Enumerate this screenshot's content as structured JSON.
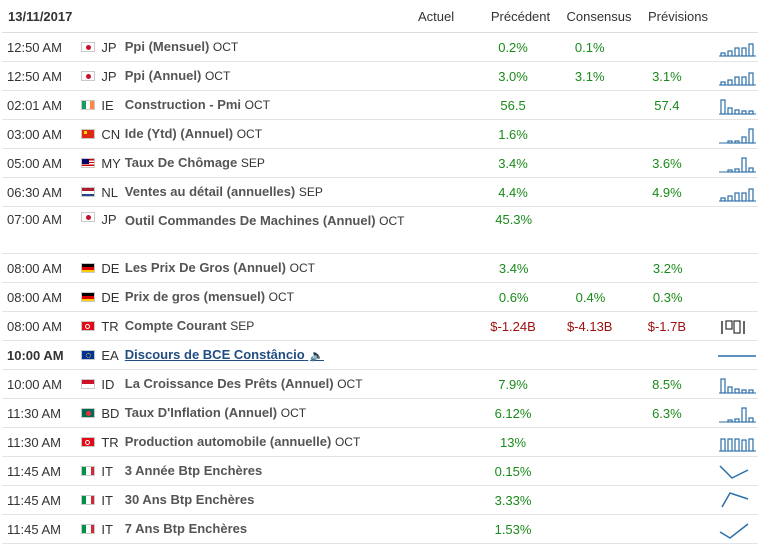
{
  "header": {
    "date": "13/11/2017",
    "actual": "Actuel",
    "previous": "Précédent",
    "consensus": "Consensus",
    "forecast": "Prévisions"
  },
  "rows": [
    {
      "time": "12:50 AM",
      "cc": "JP",
      "event": "Ppi (Mensuel)",
      "period": "OCT",
      "prev": "0.2%",
      "cons": "0.1%",
      "fore": "",
      "flag": "jp",
      "spark": "bars-up"
    },
    {
      "time": "12:50 AM",
      "cc": "JP",
      "event": "Ppi (Annuel)",
      "period": "OCT",
      "prev": "3.0%",
      "cons": "3.1%",
      "fore": "3.1%",
      "flag": "jp",
      "spark": "bars-up"
    },
    {
      "time": "02:01 AM",
      "cc": "IE",
      "event": "Construction - Pmi",
      "period": "OCT",
      "prev": "56.5",
      "cons": "",
      "fore": "57.4",
      "flag": "ie",
      "spark": "bars-mixed"
    },
    {
      "time": "03:00 AM",
      "cc": "CN",
      "event": "Ide (Ytd) (Annuel)",
      "period": "OCT",
      "prev": "1.6%",
      "cons": "",
      "fore": "",
      "flag": "cn",
      "spark": "bars-rise"
    },
    {
      "time": "05:00 AM",
      "cc": "MY",
      "event": "Taux De Chômage",
      "period": "SEP",
      "prev": "3.4%",
      "cons": "",
      "fore": "3.6%",
      "flag": "my",
      "spark": "bars-peak"
    },
    {
      "time": "06:30 AM",
      "cc": "NL",
      "event": "Ventes au détail (annuelles)",
      "period": "SEP",
      "prev": "4.4%",
      "cons": "",
      "fore": "4.9%",
      "flag": "nl",
      "spark": "bars-up"
    },
    {
      "time": "07:00 AM",
      "cc": "JP",
      "event": "Outil Commandes De Machines (Annuel)",
      "period": "OCT",
      "prev": "45.3%",
      "cons": "",
      "fore": "",
      "flag": "jp",
      "spark": "",
      "tall": true
    },
    {
      "time": "08:00 AM",
      "cc": "DE",
      "event": "Les Prix De Gros (Annuel)",
      "period": "OCT",
      "prev": "3.4%",
      "cons": "",
      "fore": "3.2%",
      "flag": "de",
      "spark": ""
    },
    {
      "time": "08:00 AM",
      "cc": "DE",
      "event": "Prix de gros (mensuel)",
      "period": "OCT",
      "prev": "0.6%",
      "cons": "0.4%",
      "fore": "0.3%",
      "flag": "de",
      "spark": ""
    },
    {
      "time": "08:00 AM",
      "cc": "TR",
      "event": "Compte Courant",
      "period": "SEP",
      "prev": "$-1.24B",
      "cons": "$-4.13B",
      "fore": "$-1.7B",
      "flag": "tr",
      "spark": "box",
      "negative": true
    },
    {
      "time": "10:00 AM",
      "cc": "EA",
      "event": "Discours de BCE Constâncio",
      "period": "",
      "prev": "",
      "cons": "",
      "fore": "",
      "flag": "eu",
      "spark": "flat",
      "bold": true,
      "link": true
    },
    {
      "time": "10:00 AM",
      "cc": "ID",
      "event": "La Croissance Des Prêts (Annuel)",
      "period": "OCT",
      "prev": "7.9%",
      "cons": "",
      "fore": "8.5%",
      "flag": "id",
      "spark": "bars-mixed"
    },
    {
      "time": "11:30 AM",
      "cc": "BD",
      "event": "Taux D'Inflation (Annuel)",
      "period": "OCT",
      "prev": "6.12%",
      "cons": "",
      "fore": "6.3%",
      "flag": "bd",
      "spark": "bars-peak"
    },
    {
      "time": "11:30 AM",
      "cc": "TR",
      "event": "Production automobile (annuelle)",
      "period": "OCT",
      "prev": "13%",
      "cons": "",
      "fore": "",
      "flag": "tr",
      "spark": "bars-full"
    },
    {
      "time": "11:45 AM",
      "cc": "IT",
      "event": "3 Année Btp Enchères",
      "period": "",
      "prev": "0.15%",
      "cons": "",
      "fore": "",
      "flag": "it",
      "spark": "line-v"
    },
    {
      "time": "11:45 AM",
      "cc": "IT",
      "event": "30 Ans Btp Enchères",
      "period": "",
      "prev": "3.33%",
      "cons": "",
      "fore": "",
      "flag": "it",
      "spark": "line-peak"
    },
    {
      "time": "11:45 AM",
      "cc": "IT",
      "event": "7 Ans Btp Enchères",
      "period": "",
      "prev": "1.53%",
      "cons": "",
      "fore": "",
      "flag": "it",
      "spark": "line-up"
    }
  ],
  "colors": {
    "positive": "#1a8a1a",
    "negative": "#a01010",
    "link": "#224d82",
    "spark": "#2b6fa8"
  }
}
